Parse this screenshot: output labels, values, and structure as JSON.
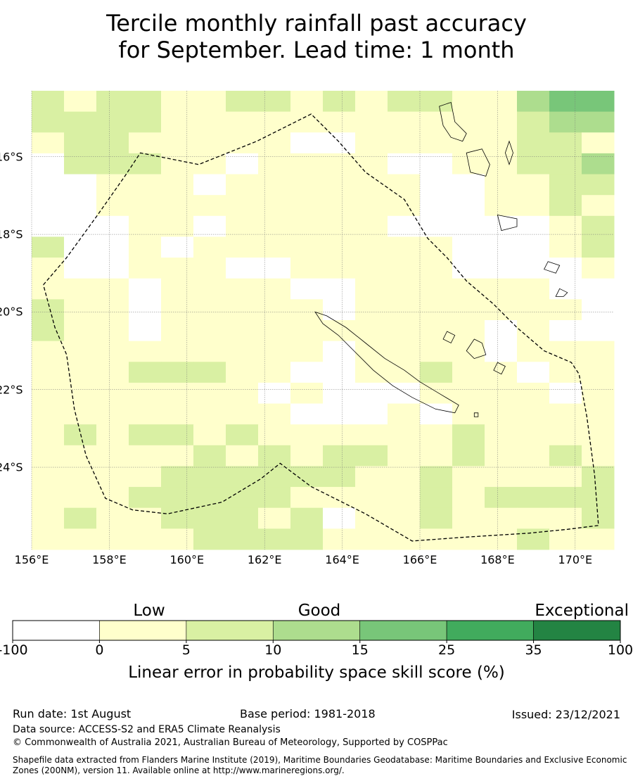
{
  "title": {
    "line1": "Tercile monthly rainfall past accuracy",
    "line2": "for September. Lead time: 1 month"
  },
  "map": {
    "lon_labels": [
      "156°E",
      "158°E",
      "160°E",
      "162°E",
      "164°E",
      "166°E",
      "168°E",
      "170°E"
    ],
    "lat_labels": [
      "16°S",
      "18°S",
      "20°S",
      "22°S",
      "24°S"
    ],
    "colors": {
      "white": "#ffffff",
      "low": "#ffffcc",
      "fair": "#d9f0a3",
      "good": "#addd8e",
      "verygood": "#78c679",
      "high": "#41ab5d",
      "exceptional": "#238443"
    },
    "grid_legend": {
      "W": "white",
      "Y": "low",
      "L": "fair",
      "G": "good",
      "M": "verygood"
    },
    "grid_rows": [
      "LYLLYYLLYLYLLYYGMM",
      "LLLLYYYYYYYYYYYLGG",
      "YLLYYYYYWWYYYYYLLY",
      "WLLLYYWYYYYWWYYLLG",
      "WWYYYWYYYYYYWWYYLL",
      "WWYYYYYYYYYYWWYYLY",
      "WWWYYWYYYYYWWWWWYL",
      "LWWYWYYYYYYYYWWWYL",
      "YWWYYYWWYYYYYWWWWY",
      "YYYWYYYYWWYYYYYYWW",
      "LYYWYYYYYWYYYYYYYW",
      "LYYWYYYYYYYYYYWYWW",
      "YYYYYYYYYWYYYYWYYY",
      "YYYLLLYYWWYYLYYWYY",
      "YYYYYYYWYWWWYYYYWY",
      "YYYYYYYYWWWYWYYYYY",
      "YLYLLYLYYYYYYLYYYY",
      "YYYYYLYLYLLYYLYYLY",
      "YYYYLLLLLLYYLYYYYL",
      "YYYLLLLLYYYYLYLLLL",
      "YLYYLLLYLWYYLYYYYL",
      "YYYYYLLLLYYYYYYLYY"
    ],
    "boundary": [
      [
        156.3,
        -19.3
      ],
      [
        156.9,
        -18.6
      ],
      [
        157.7,
        -17.5
      ],
      [
        158.4,
        -16.5
      ],
      [
        158.8,
        -15.9
      ],
      [
        160.3,
        -16.2
      ],
      [
        161.8,
        -15.6
      ],
      [
        163.2,
        -14.9
      ],
      [
        163.9,
        -15.6
      ],
      [
        164.6,
        -16.4
      ],
      [
        165.6,
        -17.1
      ],
      [
        166.2,
        -18.1
      ],
      [
        166.7,
        -18.6
      ],
      [
        167.2,
        -19.2
      ],
      [
        167.9,
        -19.8
      ],
      [
        168.5,
        -20.4
      ],
      [
        169.2,
        -21.0
      ],
      [
        169.9,
        -21.3
      ],
      [
        170.1,
        -21.6
      ],
      [
        170.3,
        -22.7
      ],
      [
        170.5,
        -24.2
      ],
      [
        170.6,
        -25.5
      ],
      [
        169.8,
        -25.6
      ],
      [
        168.8,
        -25.7
      ],
      [
        167.2,
        -25.8
      ],
      [
        165.8,
        -25.9
      ],
      [
        164.6,
        -25.2
      ],
      [
        163.2,
        -24.5
      ],
      [
        162.4,
        -23.9
      ],
      [
        161.9,
        -24.3
      ],
      [
        160.9,
        -24.9
      ],
      [
        159.5,
        -25.2
      ],
      [
        158.6,
        -25.1
      ],
      [
        157.9,
        -24.8
      ],
      [
        157.4,
        -23.7
      ],
      [
        157.1,
        -22.5
      ],
      [
        157.0,
        -21.8
      ],
      [
        156.9,
        -21.1
      ],
      [
        156.6,
        -20.4
      ]
    ],
    "islands": [
      [
        [
          163.3,
          -20.0
        ],
        [
          163.6,
          -20.1
        ],
        [
          164.1,
          -20.4
        ],
        [
          164.6,
          -20.8
        ],
        [
          165.1,
          -21.2
        ],
        [
          165.6,
          -21.5
        ],
        [
          166.0,
          -21.8
        ],
        [
          166.5,
          -22.1
        ],
        [
          167.0,
          -22.4
        ],
        [
          166.9,
          -22.6
        ],
        [
          166.4,
          -22.5
        ],
        [
          165.8,
          -22.2
        ],
        [
          165.3,
          -21.9
        ],
        [
          164.8,
          -21.5
        ],
        [
          164.3,
          -21.0
        ],
        [
          163.9,
          -20.6
        ],
        [
          163.5,
          -20.3
        ]
      ],
      [
        [
          166.5,
          -14.7
        ],
        [
          166.8,
          -14.6
        ],
        [
          166.9,
          -15.1
        ],
        [
          167.2,
          -15.4
        ],
        [
          167.1,
          -15.6
        ],
        [
          166.8,
          -15.5
        ],
        [
          166.6,
          -15.2
        ]
      ],
      [
        [
          167.2,
          -15.9
        ],
        [
          167.6,
          -15.8
        ],
        [
          167.8,
          -16.2
        ],
        [
          167.7,
          -16.5
        ],
        [
          167.3,
          -16.4
        ]
      ],
      [
        [
          168.0,
          -17.5
        ],
        [
          168.5,
          -17.6
        ],
        [
          168.5,
          -17.8
        ],
        [
          168.1,
          -17.9
        ]
      ],
      [
        [
          169.3,
          -18.7
        ],
        [
          169.6,
          -18.8
        ],
        [
          169.5,
          -19.0
        ],
        [
          169.2,
          -18.9
        ]
      ],
      [
        [
          169.6,
          -19.4
        ],
        [
          169.8,
          -19.5
        ],
        [
          169.7,
          -19.6
        ],
        [
          169.5,
          -19.6
        ]
      ],
      [
        [
          167.4,
          -20.7
        ],
        [
          167.6,
          -20.8
        ],
        [
          167.7,
          -21.1
        ],
        [
          167.4,
          -21.2
        ],
        [
          167.2,
          -21.0
        ]
      ],
      [
        [
          166.7,
          -20.5
        ],
        [
          166.9,
          -20.6
        ],
        [
          166.8,
          -20.8
        ],
        [
          166.6,
          -20.7
        ]
      ],
      [
        [
          168.0,
          -21.3
        ],
        [
          168.2,
          -21.4
        ],
        [
          168.1,
          -21.6
        ],
        [
          167.9,
          -21.5
        ]
      ],
      [
        [
          167.4,
          -22.6
        ],
        [
          167.5,
          -22.6
        ],
        [
          167.5,
          -22.7
        ],
        [
          167.4,
          -22.7
        ]
      ],
      [
        [
          168.3,
          -15.6
        ],
        [
          168.4,
          -15.9
        ],
        [
          168.3,
          -16.2
        ],
        [
          168.2,
          -15.9
        ]
      ]
    ]
  },
  "colorbar": {
    "categories": [
      "Low",
      "Good",
      "Exceptional"
    ],
    "ticks": [
      "-100",
      "0",
      "5",
      "10",
      "15",
      "25",
      "35",
      "100"
    ],
    "segment_colors": [
      "#ffffff",
      "#ffffcc",
      "#d9f0a3",
      "#addd8e",
      "#78c679",
      "#41ab5d",
      "#238443"
    ],
    "label": "Linear error in probability space skill score (%)"
  },
  "footer": {
    "run_date": "Run date: 1st August",
    "base_period": "Base period: 1981-2018",
    "issued": "Issued: 23/12/2021",
    "data_source": "Data source: ACCESS-S2 and ERA5 Climate Reanalysis",
    "copyright": "© Commonwealth of Australia 2021, Australian Bureau of Meteorology, Supported by COSPPac",
    "shapefile": "Shapefile data extracted from Flanders Marine Institute (2019), Maritime Boundaries Geodatabase: Maritime Boundaries and Exclusive Economic Zones (200NM), version 11. Available online at http://www.marineregions.org/."
  }
}
